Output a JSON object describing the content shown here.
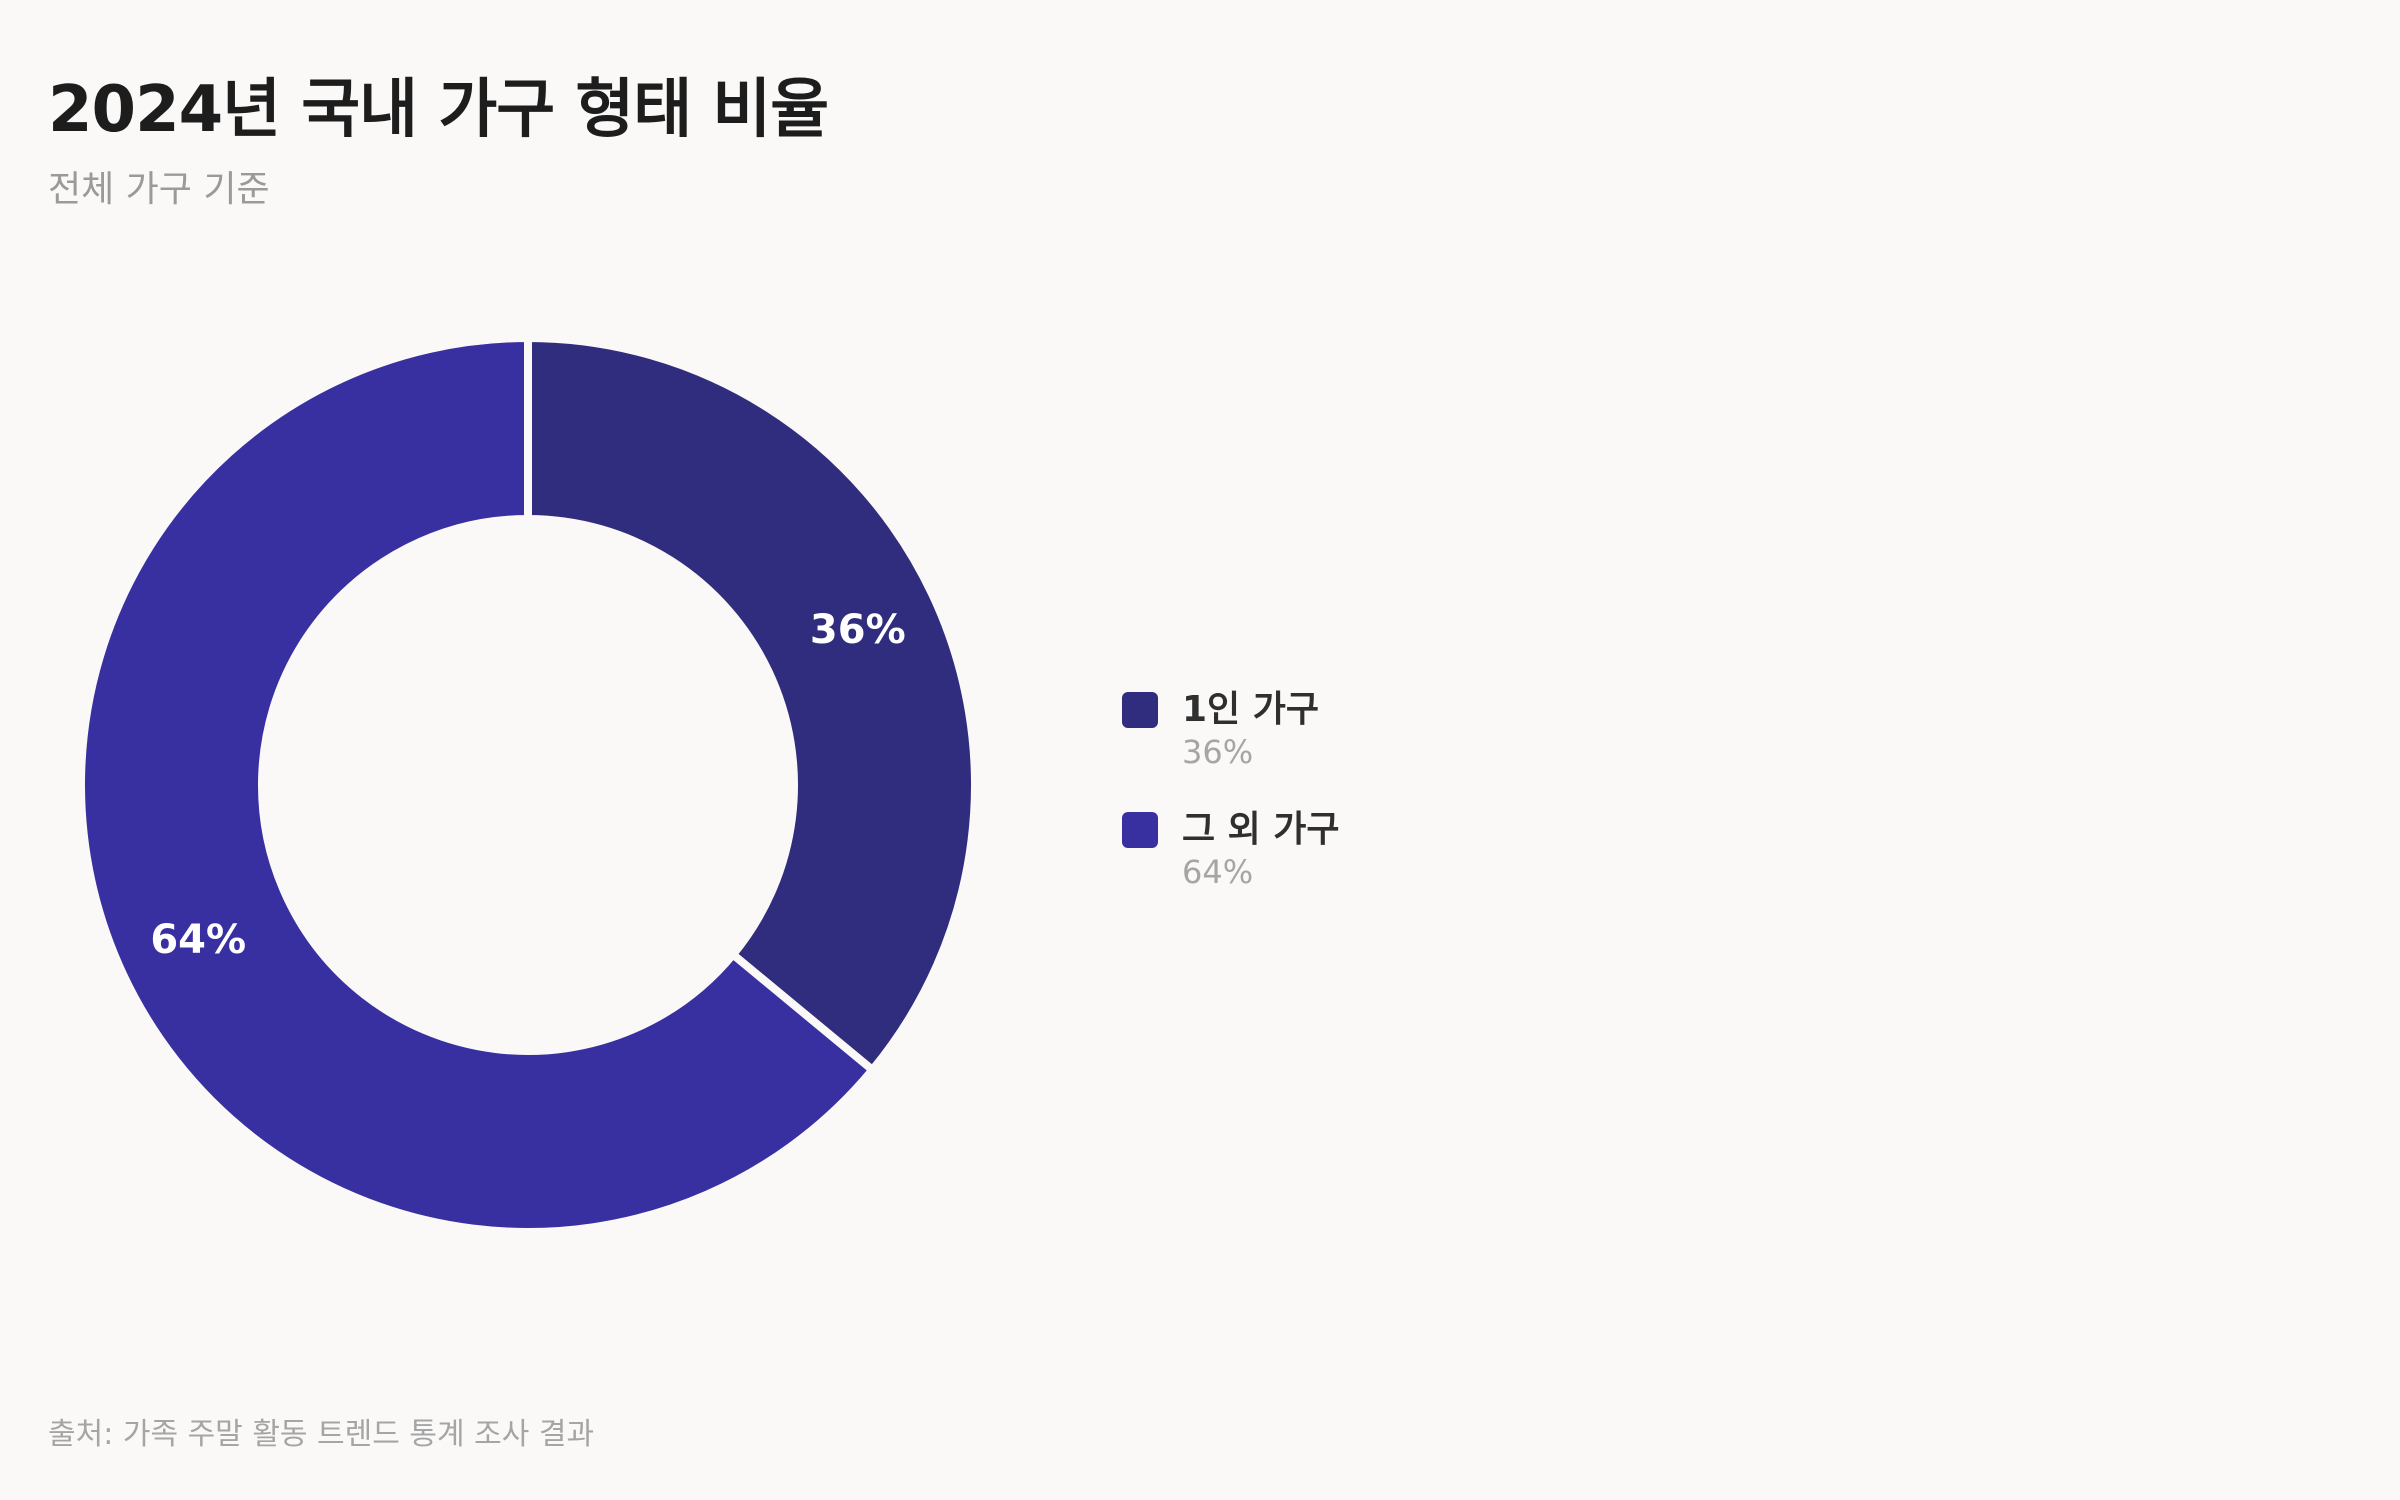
{
  "chart_data": {
    "type": "pie",
    "variant": "donut",
    "title": "2024년 국내 가구 형태 비율",
    "subtitle": "전체 가구 기준",
    "slices": [
      {
        "label": "1인 가구",
        "value": 36,
        "display": "36%",
        "color": "#302c7e"
      },
      {
        "label": "그 외 가구",
        "value": 64,
        "display": "64%",
        "color": "#382fa1"
      }
    ],
    "legend_position": "right",
    "source": "출처: 가족 주말 활동 트렌드 통계 조사 결과"
  }
}
